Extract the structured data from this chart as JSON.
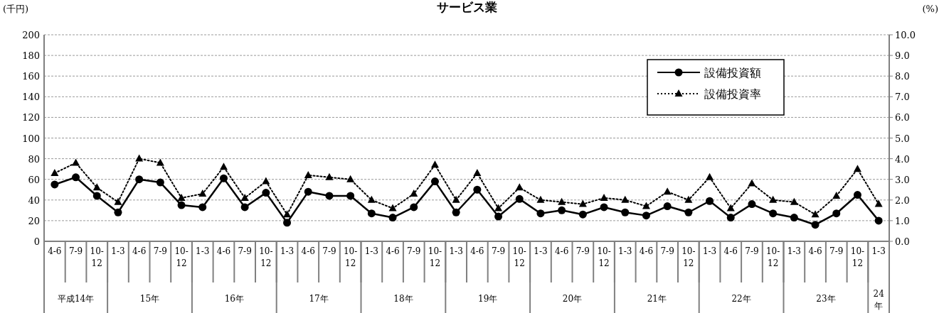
{
  "chart_data": {
    "type": "line",
    "title": "サービス業",
    "ylabel": "(千円)",
    "y2label": "(%)",
    "categories": [
      "4-6",
      "7-9",
      "10-\n12",
      "1-3",
      "4-6",
      "7-9",
      "10-\n12",
      "1-3",
      "4-6",
      "7-9",
      "10-\n12",
      "1-3",
      "4-6",
      "7-9",
      "10-\n12",
      "1-3",
      "4-6",
      "7-9",
      "10-\n12",
      "1-3",
      "4-6",
      "7-9",
      "10-\n12",
      "1-3",
      "4-6",
      "7-9",
      "10-\n12",
      "1-3",
      "4-6",
      "7-9",
      "10-\n12",
      "1-3",
      "4-6",
      "7-9",
      "10-\n12",
      "1-3",
      "4-6",
      "7-9",
      "10-\n12",
      "1-3"
    ],
    "annotations": [
      "平成14年",
      "15年",
      "16年",
      "17年",
      "18年",
      "19年",
      "20年",
      "21年",
      "22年",
      "23年",
      "24\n年"
    ],
    "series": [
      {
        "name": "設備投資額",
        "color": "#000000",
        "marker": "circle",
        "line_style": "solid",
        "values": [
          55,
          62,
          44,
          28,
          60,
          57,
          35,
          33,
          61,
          33,
          47,
          18,
          48,
          44,
          44,
          27,
          23,
          33,
          58,
          28,
          50,
          24,
          41,
          27,
          30,
          26,
          33,
          28,
          25,
          34,
          28,
          39,
          23,
          36,
          27,
          23,
          16,
          27,
          45,
          20
        ]
      },
      {
        "name": "設備投資率",
        "color": "#000000",
        "marker": "triangle",
        "line_style": "dotted",
        "axis": "y2",
        "values": [
          3.3,
          3.8,
          2.6,
          1.9,
          4.0,
          3.8,
          2.1,
          2.3,
          3.6,
          2.1,
          2.9,
          1.3,
          3.2,
          3.1,
          3.0,
          2.0,
          1.6,
          2.3,
          3.7,
          2.0,
          3.3,
          1.6,
          2.6,
          2.0,
          1.9,
          1.8,
          2.1,
          2.0,
          1.7,
          2.4,
          2.0,
          3.1,
          1.6,
          2.8,
          2.0,
          1.9,
          1.3,
          2.2,
          3.5,
          1.8
        ]
      }
    ],
    "ylim": [
      0,
      200
    ],
    "yticks": [
      0,
      20,
      40,
      60,
      80,
      100,
      120,
      140,
      160,
      180,
      200
    ],
    "y2lim": [
      0,
      10
    ],
    "y2ticks": [
      {
        "value": 0,
        "label": "0.0"
      },
      {
        "value": 1,
        "label": "1.0"
      },
      {
        "value": 2,
        "label": "2.0"
      },
      {
        "value": 3,
        "label": "3.0"
      },
      {
        "value": 4,
        "label": "4.0"
      },
      {
        "value": 5,
        "label": "5.0"
      },
      {
        "value": 6,
        "label": "6.0"
      },
      {
        "value": 7,
        "label": "7.0"
      },
      {
        "value": 8,
        "label": "8.0"
      },
      {
        "value": 9,
        "label": "9.0"
      },
      {
        "value": 10,
        "label": "10.0"
      }
    ],
    "grid": "y",
    "legend": "top right"
  }
}
